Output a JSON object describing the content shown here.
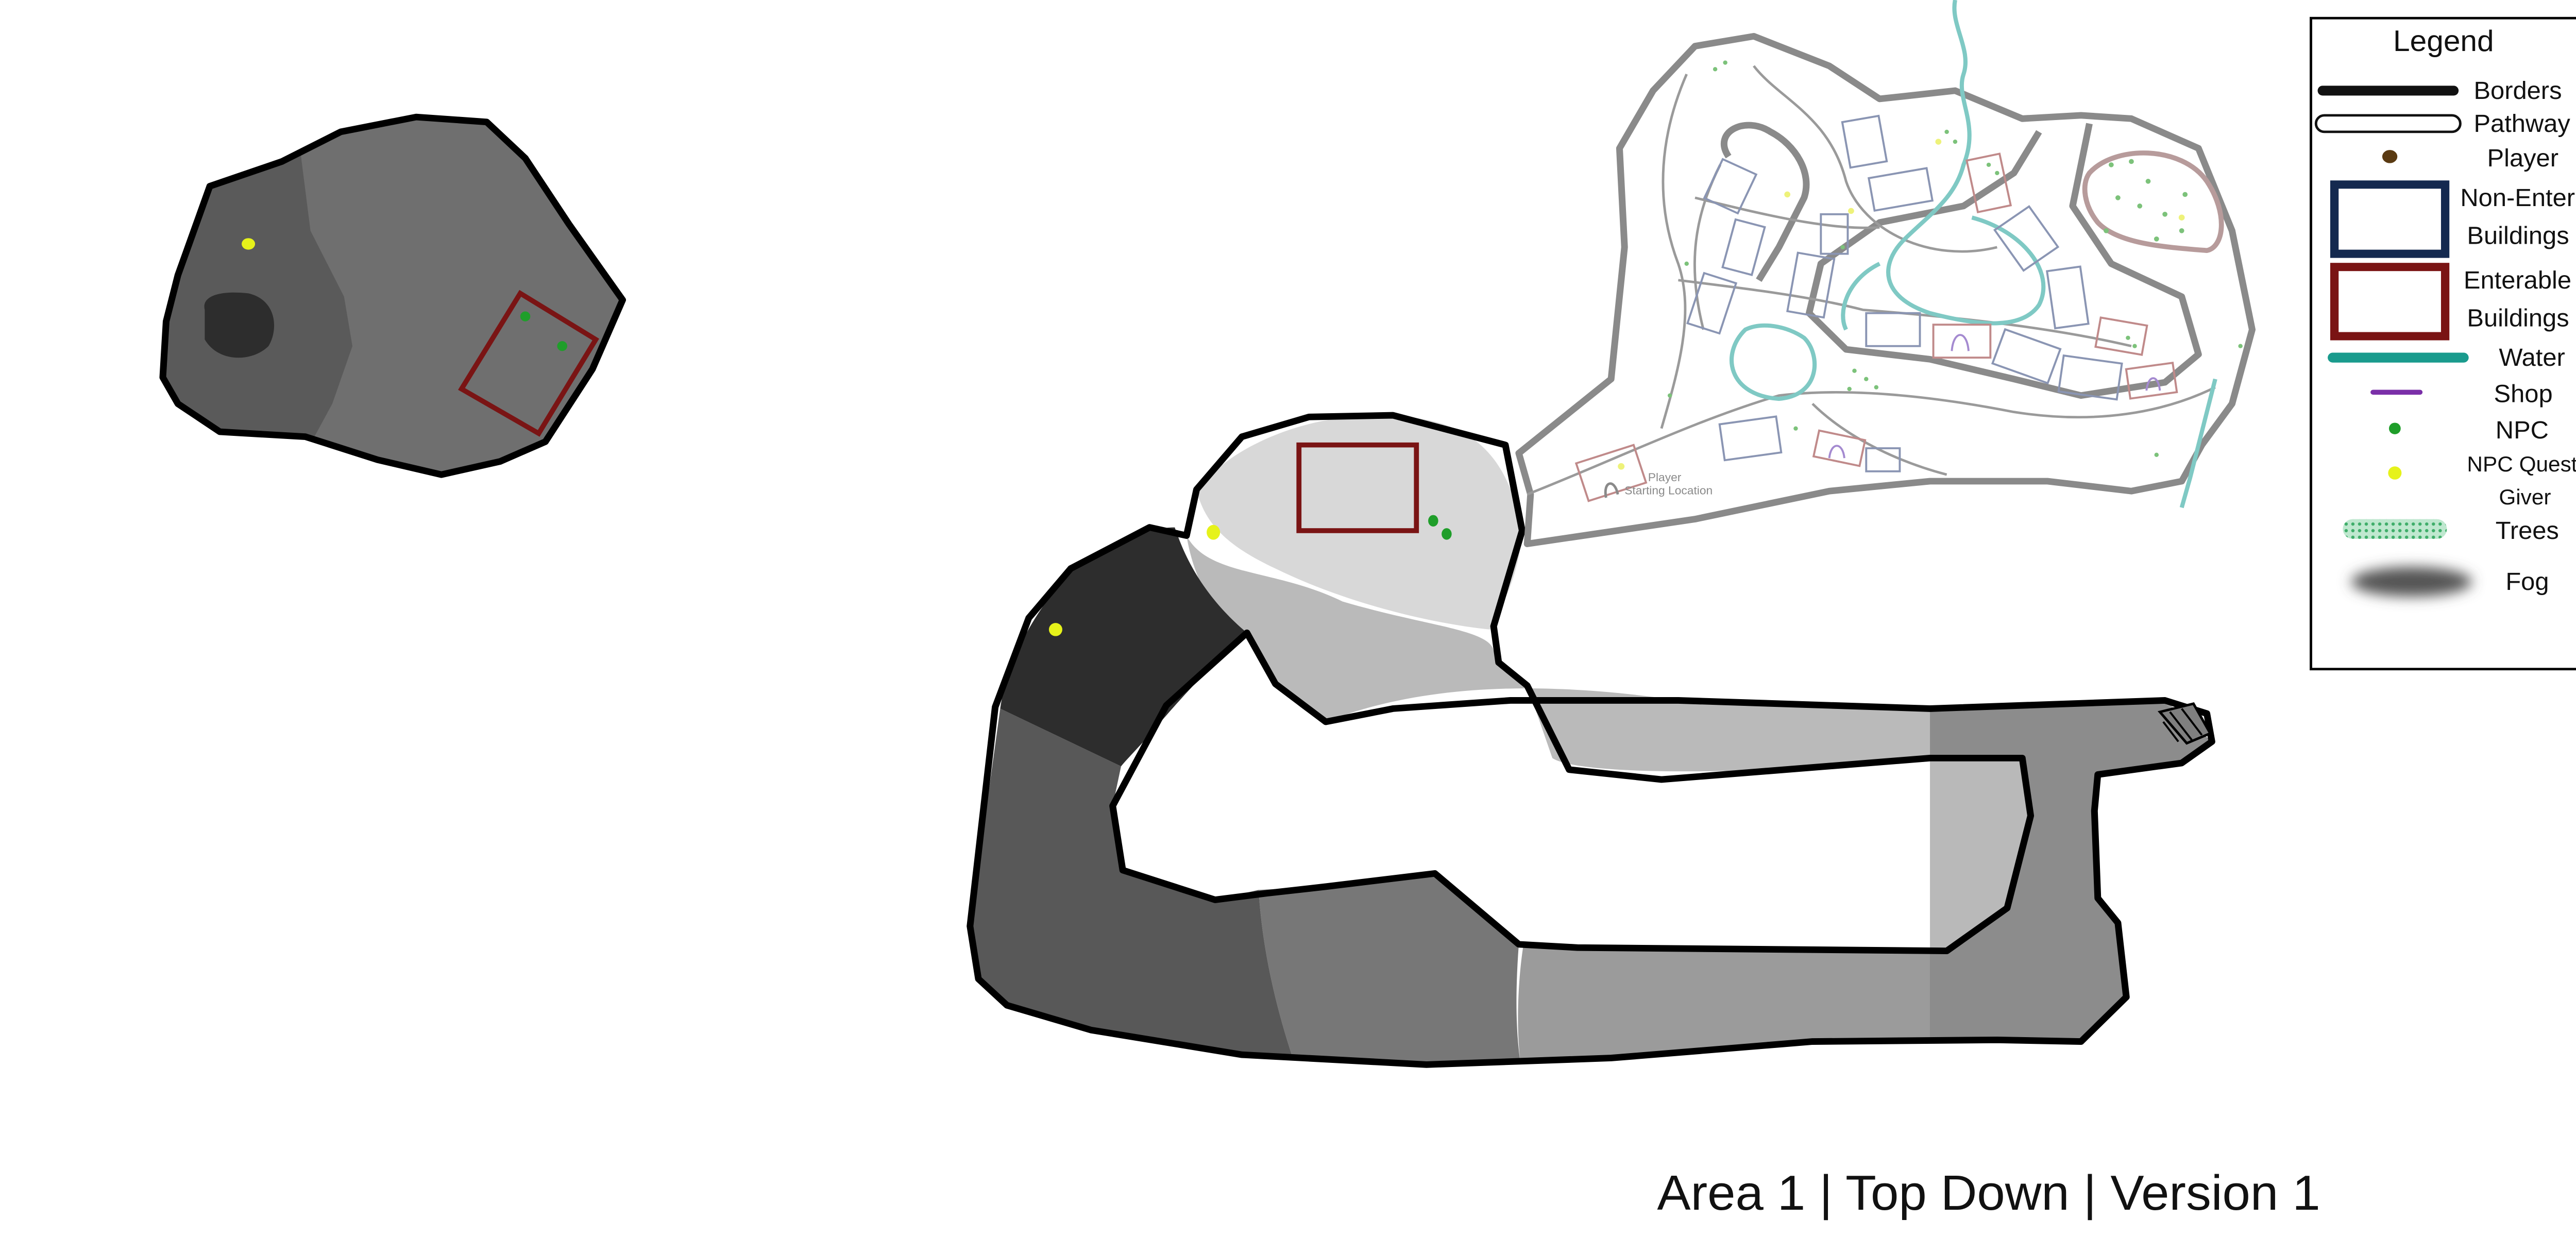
{
  "caption": "Area 1 | Top Down | Version 1",
  "legend": {
    "title": "Legend",
    "items": {
      "borders": "Borders",
      "pathway": "Pathway",
      "player": "Player",
      "non_enter_1": "Non-Enter",
      "non_enter_2": "Buildings",
      "enterable_1": "Enterable",
      "enterable_2": "Buildings",
      "water": "Water",
      "shop": "Shop",
      "npc": "NPC",
      "quest_1": "NPC Quest",
      "quest_2": "Giver",
      "trees": "Trees",
      "fog": "Fog"
    }
  },
  "town": {
    "player_label": "Player",
    "start_label": "Starting Location"
  },
  "colors": {
    "border": "#000000",
    "enterable": "#7a1414",
    "non_enterable": "#14294f",
    "water": "#1a9b8d",
    "shop": "#7a2fa8",
    "npc": "#1f9e2a",
    "quest_giver": "#e6f21a",
    "player": "#5a3a12"
  }
}
